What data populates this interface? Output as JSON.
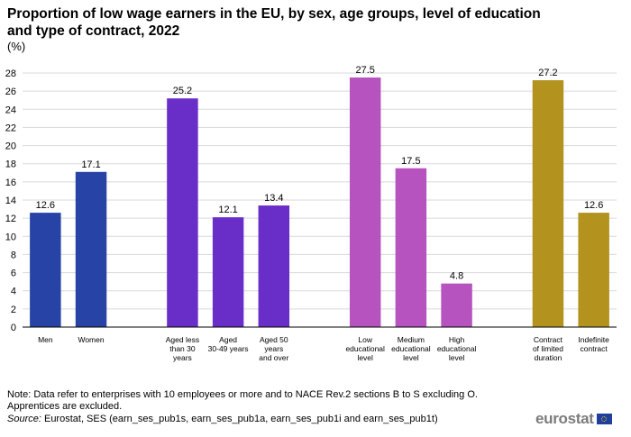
{
  "header": {
    "title": "Proportion of low wage earners in the EU, by sex, age groups, level of education and type of contract, 2022",
    "subtitle": "(%)"
  },
  "footer": {
    "note": "Note: Data refer to enterprises with 10 employees or more and to NACE Rev.2 sections B to S excluding  O. Apprentices are excluded.",
    "source_label": "Source:",
    "source_text": " Eurostat, SES (earn_ses_pub1s, earn_ses_pub1a, earn_ses_pub1i and earn_ses_pub1t)",
    "logo_text": "eurostat",
    "logo_icon": "eu-flag-icon"
  },
  "chart_data": {
    "type": "bar",
    "title": "Proportion of low wage earners in the EU, by sex, age groups, level of education and type of contract, 2022",
    "subtitle": "(%)",
    "ylim": [
      0,
      28
    ],
    "yticks": [
      0,
      2,
      4,
      6,
      8,
      10,
      12,
      14,
      16,
      18,
      20,
      22,
      24,
      26,
      28
    ],
    "grid": true,
    "groups": [
      {
        "color": "#2743a6",
        "bars": [
          {
            "category": [
              "Men"
            ],
            "value": 12.6,
            "label": "12.6"
          },
          {
            "category": [
              "Women"
            ],
            "value": 17.1,
            "label": "17.1"
          }
        ]
      },
      {
        "color": "#6a2ec8",
        "bars": [
          {
            "category": [
              "Aged less",
              "than 30",
              "years"
            ],
            "value": 25.2,
            "label": "25.2"
          },
          {
            "category": [
              "Aged",
              "30-49 years"
            ],
            "value": 12.1,
            "label": "12.1"
          },
          {
            "category": [
              "Aged 50",
              "years",
              "and over"
            ],
            "value": 13.4,
            "label": "13.4"
          }
        ]
      },
      {
        "color": "#b653bf",
        "bars": [
          {
            "category": [
              "Low",
              "educational",
              "level"
            ],
            "value": 27.5,
            "label": "27.5"
          },
          {
            "category": [
              "Medium",
              "educational",
              "level"
            ],
            "value": 17.5,
            "label": "17.5"
          },
          {
            "category": [
              "High",
              "educational",
              "level"
            ],
            "value": 4.8,
            "label": "4.8"
          }
        ]
      },
      {
        "color": "#b3921e",
        "bars": [
          {
            "category": [
              "Contract",
              "of limited",
              "duration"
            ],
            "value": 27.2,
            "label": "27.2"
          },
          {
            "category": [
              "Indefinite",
              "contract"
            ],
            "value": 12.6,
            "label": "12.6"
          }
        ]
      }
    ]
  }
}
